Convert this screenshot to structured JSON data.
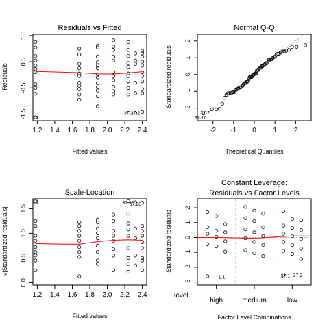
{
  "chart_data": [
    {
      "type": "scatter",
      "title": "Residuals vs Fitted",
      "xlabel": "Fitted values",
      "ylabel": "Residuals",
      "xlim": [
        1.15,
        2.45
      ],
      "ylim": [
        -1.75,
        1.55
      ],
      "xticks": [
        "1.2",
        "1.4",
        "1.6",
        "1.8",
        "2.0",
        "2.2",
        "2.4"
      ],
      "xtick_values": [
        1.2,
        1.4,
        1.6,
        1.8,
        2.0,
        2.2,
        2.4
      ],
      "yticks": [
        "-1.5",
        "-0.5",
        "0.5",
        "1.5"
      ],
      "ytick_values": [
        -1.5,
        -0.5,
        0.5,
        1.5
      ],
      "points": [
        [
          1.18,
          1.25
        ],
        [
          1.18,
          1.05
        ],
        [
          1.18,
          0.72
        ],
        [
          1.18,
          0.55
        ],
        [
          1.18,
          0.35
        ],
        [
          1.18,
          0.22
        ],
        [
          1.18,
          0.1
        ],
        [
          1.18,
          -0.35
        ],
        [
          1.18,
          -0.5
        ],
        [
          1.18,
          -0.72
        ],
        [
          1.18,
          -1.62
        ],
        [
          1.68,
          1.0
        ],
        [
          1.68,
          0.78
        ],
        [
          1.68,
          0.42
        ],
        [
          1.68,
          0.25
        ],
        [
          1.68,
          0.05
        ],
        [
          1.68,
          -0.05
        ],
        [
          1.68,
          -0.3
        ],
        [
          1.68,
          -0.42
        ],
        [
          1.68,
          -0.55
        ],
        [
          1.68,
          -0.75
        ],
        [
          1.68,
          -0.95
        ],
        [
          1.89,
          1.12
        ],
        [
          1.89,
          1.05
        ],
        [
          1.89,
          0.7
        ],
        [
          1.89,
          0.48
        ],
        [
          1.89,
          0.35
        ],
        [
          1.89,
          0.25
        ],
        [
          1.89,
          0.02
        ],
        [
          1.89,
          -0.1
        ],
        [
          1.89,
          -0.32
        ],
        [
          1.89,
          -0.48
        ],
        [
          1.89,
          -0.6
        ],
        [
          1.89,
          -0.82
        ],
        [
          1.89,
          -1.2
        ],
        [
          2.07,
          1.32
        ],
        [
          2.07,
          1.08
        ],
        [
          2.07,
          0.95
        ],
        [
          2.07,
          0.7
        ],
        [
          2.07,
          0.55
        ],
        [
          2.07,
          0.1
        ],
        [
          2.07,
          -0.05
        ],
        [
          2.07,
          -0.2
        ],
        [
          2.07,
          -0.45
        ],
        [
          2.07,
          -0.62
        ],
        [
          2.07,
          -0.75
        ],
        [
          2.24,
          1.25
        ],
        [
          2.24,
          0.95
        ],
        [
          2.24,
          0.72
        ],
        [
          2.24,
          0.45
        ],
        [
          2.24,
          0.3
        ],
        [
          2.24,
          0.05
        ],
        [
          2.24,
          -0.05
        ],
        [
          2.24,
          -0.25
        ],
        [
          2.24,
          -0.5
        ],
        [
          2.24,
          -0.75
        ],
        [
          2.24,
          -1.45
        ],
        [
          2.32,
          0.82
        ],
        [
          2.32,
          0.55
        ],
        [
          2.32,
          0.42
        ],
        [
          2.32,
          -0.3
        ],
        [
          2.32,
          -0.7
        ],
        [
          2.32,
          -1.45
        ],
        [
          2.4,
          0.92
        ],
        [
          2.4,
          0.82
        ],
        [
          2.4,
          0.7
        ],
        [
          2.4,
          0.5
        ],
        [
          2.4,
          0.35
        ],
        [
          2.4,
          0.1
        ],
        [
          2.4,
          -0.05
        ],
        [
          2.4,
          -0.25
        ],
        [
          2.4,
          -0.55
        ],
        [
          2.4,
          -0.7
        ],
        [
          2.4,
          -1.42
        ]
      ],
      "smooth": [
        [
          1.18,
          0.13
        ],
        [
          1.5,
          0.1
        ],
        [
          1.68,
          0.08
        ],
        [
          1.89,
          0.04
        ],
        [
          2.07,
          0.03
        ],
        [
          2.24,
          0.07
        ],
        [
          2.4,
          0.12
        ]
      ],
      "annotations": [
        {
          "text": "1.1",
          "x": 1.18,
          "y": -1.62
        },
        {
          "text": "37.1",
          "x": 2.24,
          "y": -1.45
        },
        {
          "text": "37.2",
          "x": 2.32,
          "y": -1.45
        }
      ]
    },
    {
      "type": "scatter",
      "title": "Normal Q-Q",
      "xlabel": "Theoretical Quantiles",
      "ylabel": "Standardized residuals",
      "xlim": [
        -2.75,
        2.75
      ],
      "ylim": [
        -2.75,
        2.4
      ],
      "xticks": [
        "-2",
        "-1",
        "0",
        "1",
        "2"
      ],
      "xtick_values": [
        -2,
        -1,
        0,
        1,
        2
      ],
      "yticks": [
        "-2",
        "-1",
        "0",
        "1",
        "2"
      ],
      "ytick_values": [
        -2,
        -1,
        0,
        1,
        2
      ],
      "reference_line": [
        [
          -2.75,
          -2.75
        ],
        [
          2.4,
          2.4
        ]
      ],
      "annotations": [
        {
          "text": "37.2",
          "x": -2.38,
          "y": -2.25
        },
        {
          "text": "37.16",
          "x": -2.6,
          "y": -2.55
        }
      ]
    },
    {
      "type": "scatter",
      "title": "Scale-Location",
      "xlabel": "Fitted values",
      "ylabel": "√|Standardized residuals|",
      "xlim": [
        1.15,
        2.45
      ],
      "ylim": [
        -0.05,
        1.7
      ],
      "xticks": [
        "1.2",
        "1.4",
        "1.6",
        "1.8",
        "2.0",
        "2.2",
        "2.4"
      ],
      "xtick_values": [
        1.2,
        1.4,
        1.6,
        1.8,
        2.0,
        2.2,
        2.4
      ],
      "yticks": [
        "0.0",
        "0.5",
        "1.0",
        "1.5"
      ],
      "ytick_values": [
        0.0,
        0.5,
        1.0,
        1.5
      ],
      "points": [
        [
          1.18,
          1.65
        ],
        [
          1.18,
          1.25
        ],
        [
          1.18,
          1.15
        ],
        [
          1.18,
          0.95
        ],
        [
          1.18,
          0.85
        ],
        [
          1.18,
          0.72
        ],
        [
          1.18,
          0.62
        ],
        [
          1.18,
          0.55
        ],
        [
          1.18,
          0.45
        ],
        [
          1.18,
          0.25
        ],
        [
          1.68,
          1.22
        ],
        [
          1.68,
          1.15
        ],
        [
          1.68,
          1.05
        ],
        [
          1.68,
          0.95
        ],
        [
          1.68,
          0.85
        ],
        [
          1.68,
          0.72
        ],
        [
          1.68,
          0.62
        ],
        [
          1.68,
          0.52
        ],
        [
          1.68,
          0.13
        ],
        [
          1.89,
          1.28
        ],
        [
          1.89,
          1.22
        ],
        [
          1.89,
          1.1
        ],
        [
          1.89,
          1.0
        ],
        [
          1.89,
          0.9
        ],
        [
          1.89,
          0.75
        ],
        [
          1.89,
          0.62
        ],
        [
          1.89,
          0.45
        ],
        [
          1.89,
          0.38
        ],
        [
          2.07,
          1.38
        ],
        [
          2.07,
          1.25
        ],
        [
          2.07,
          1.05
        ],
        [
          2.07,
          0.95
        ],
        [
          2.07,
          0.85
        ],
        [
          2.07,
          0.68
        ],
        [
          2.07,
          0.55
        ],
        [
          2.07,
          0.25
        ],
        [
          2.24,
          1.65
        ],
        [
          2.24,
          1.4
        ],
        [
          2.24,
          1.2
        ],
        [
          2.24,
          1.08
        ],
        [
          2.24,
          0.95
        ],
        [
          2.24,
          0.7
        ],
        [
          2.24,
          0.5
        ],
        [
          2.24,
          0.38
        ],
        [
          2.24,
          0.22
        ],
        [
          2.32,
          1.63
        ],
        [
          2.32,
          1.1
        ],
        [
          2.32,
          0.9
        ],
        [
          2.32,
          0.55
        ],
        [
          2.32,
          0.35
        ],
        [
          2.4,
          1.62
        ],
        [
          2.4,
          1.15
        ],
        [
          2.4,
          1.05
        ],
        [
          2.4,
          0.95
        ],
        [
          2.4,
          0.82
        ],
        [
          2.4,
          0.7
        ],
        [
          2.4,
          0.5
        ],
        [
          2.4,
          0.45
        ],
        [
          2.4,
          0.25
        ]
      ],
      "smooth": [
        [
          1.18,
          0.79
        ],
        [
          1.5,
          0.78
        ],
        [
          1.68,
          0.78
        ],
        [
          1.89,
          0.83
        ],
        [
          2.07,
          0.86
        ],
        [
          2.24,
          0.87
        ],
        [
          2.4,
          0.86
        ]
      ],
      "annotations": [
        {
          "text": "1.1",
          "x": 1.18,
          "y": 1.65
        },
        {
          "text": "37.16",
          "x": 2.24,
          "y": 1.63
        },
        {
          "text": "37.20",
          "x": 2.32,
          "y": 1.6
        }
      ]
    },
    {
      "type": "scatter",
      "title": "Constant Leverage:",
      "subtitle": "Residuals vs Factor Levels",
      "xlabel": "Factor Level Combinations",
      "ylabel": "Standardized residuals",
      "factor_prefix": "level :",
      "categories": [
        "high",
        "medium",
        "low"
      ],
      "ylim": [
        -3.2,
        2.6
      ],
      "yticks": [
        "-3",
        "-2",
        "-1",
        "0",
        "1",
        "2"
      ],
      "ytick_values": [
        -3,
        -2,
        -1,
        0,
        1,
        2
      ],
      "groups": [
        {
          "name": "high",
          "points": [
            1.7,
            1.45,
            0.9,
            0.7,
            0.45,
            0.35,
            0.25,
            0.05,
            -0.25,
            -0.45,
            -0.6,
            -0.95,
            -2.6
          ],
          "smooth": 0.0
        },
        {
          "name": "medium",
          "points": [
            2.05,
            1.8,
            1.6,
            1.3,
            1.1,
            0.7,
            0.55,
            0.35,
            0.1,
            -0.05,
            -0.3,
            -0.5,
            -0.85,
            -1.05,
            -1.25
          ],
          "smooth": -0.05
        },
        {
          "name": "low",
          "points": [
            1.75,
            1.25,
            1.15,
            0.8,
            0.65,
            0.5,
            0.25,
            0.1,
            -0.1,
            -0.3,
            -0.5,
            -0.75,
            -0.9,
            -1.1,
            -1.45,
            -2.5
          ],
          "smooth": 0.1
        }
      ],
      "annotations": [
        {
          "text": "1.1",
          "group": 0,
          "y": -2.62
        },
        {
          "text": "37.1",
          "group": 2,
          "y": -2.55
        },
        {
          "text": "37.2",
          "group": 2,
          "y": -2.52
        }
      ]
    }
  ],
  "colors": {
    "smooth": "#ff0000",
    "reference": "#999999",
    "ink": "#000000",
    "divider": "#cccccc"
  }
}
